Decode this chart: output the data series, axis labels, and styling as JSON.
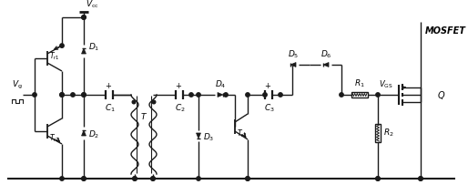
{
  "bg_color": "#ffffff",
  "line_color": "#1a1a1a",
  "line_width": 1.0,
  "fig_width": 5.14,
  "fig_height": 2.14,
  "dpi": 100,
  "labels": {
    "Vcc": "$V_{\\rm cc}$",
    "Vg": "$V_{\\rm g}$",
    "Tr1": "$T_{\\rm r1}$",
    "Tr2": "$T_{\\rm r2}$",
    "Tr3": "$T_{\\rm r3}$",
    "D1": "$D_1$",
    "D2": "$D_2$",
    "D3": "$D_3$",
    "D4": "$D_4$",
    "D5": "$D_5$",
    "D6": "$D_6$",
    "C1": "$C_1$",
    "C2": "$C_2$",
    "C3": "$C_3$",
    "T": "$T$",
    "R1": "$R_1$",
    "R2": "$R_2$",
    "VGS": "$V_{\\rm GS}$",
    "Q": "$Q$",
    "MOSFET": "MOSFET"
  }
}
